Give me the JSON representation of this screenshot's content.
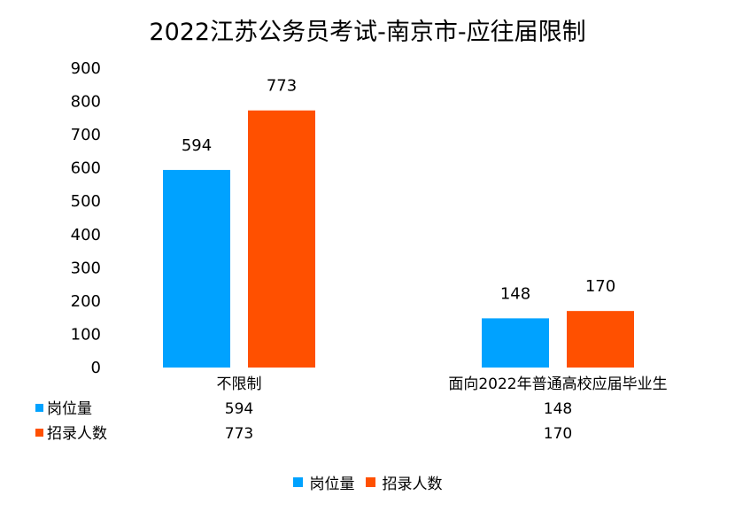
{
  "chart_data": {
    "type": "bar",
    "title": "2022江苏公务员考试-南京市-应往届限制",
    "categories": [
      "不限制",
      "面向2022年普通高校应届毕业生"
    ],
    "series": [
      {
        "name": "岗位量",
        "values": [
          594,
          148
        ],
        "color": "#00a2ff"
      },
      {
        "name": "招录人数",
        "values": [
          773,
          170
        ],
        "color": "#ff5000"
      }
    ],
    "yticks": [
      0,
      100,
      200,
      300,
      400,
      500,
      600,
      700,
      800,
      900
    ],
    "ylim": [
      0,
      900
    ],
    "grid": false,
    "data_labels": true,
    "data_table": true,
    "legend": "bottom"
  }
}
